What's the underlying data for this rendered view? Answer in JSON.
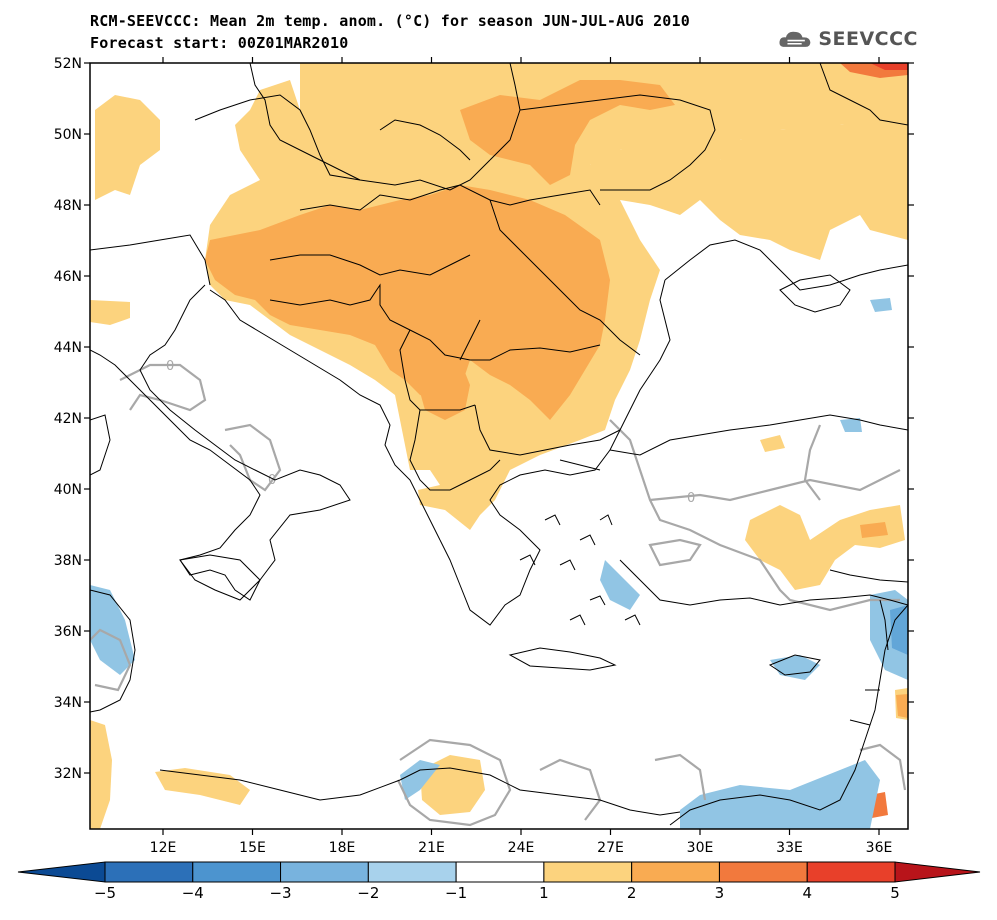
{
  "header": {
    "title_line1": "RCM-SEEVCCC: Mean 2m temp. anom. (°C) for season JUN-JUL-AUG 2010",
    "title_line2": "Forecast start: 00Z01MAR2010",
    "logo_text": "SEEVCCC"
  },
  "map": {
    "lat_labels": [
      "52N",
      "50N",
      "48N",
      "46N",
      "44N",
      "42N",
      "40N",
      "38N",
      "36N",
      "34N",
      "32N"
    ],
    "lon_labels": [
      "12E",
      "15E",
      "18E",
      "21E",
      "24E",
      "27E",
      "30E",
      "33E",
      "36E"
    ],
    "contour_label": "0",
    "colors": {
      "anom_1_2": "#fcd37e",
      "anom_2_3": "#f9ab52",
      "anom_3_4": "#f2793d",
      "anom_4_5": "#e8402a",
      "anom_m1_m2": "#91c5e4",
      "anom_m2_m3": "#62a6d8",
      "land_border": "#000000",
      "zero_contour": "#a8a8a8"
    }
  },
  "colorbar": {
    "labels": [
      "−5",
      "−4",
      "−3",
      "−2",
      "−1",
      "1",
      "2",
      "3",
      "4",
      "5"
    ],
    "colors": [
      "#0b4a94",
      "#2c70b8",
      "#4c94cf",
      "#78b3de",
      "#a8d2ec",
      "#ffffff",
      "#fcd37e",
      "#f9ab52",
      "#f2793d",
      "#e8402a",
      "#d42a1c",
      "#b8141a"
    ]
  }
}
